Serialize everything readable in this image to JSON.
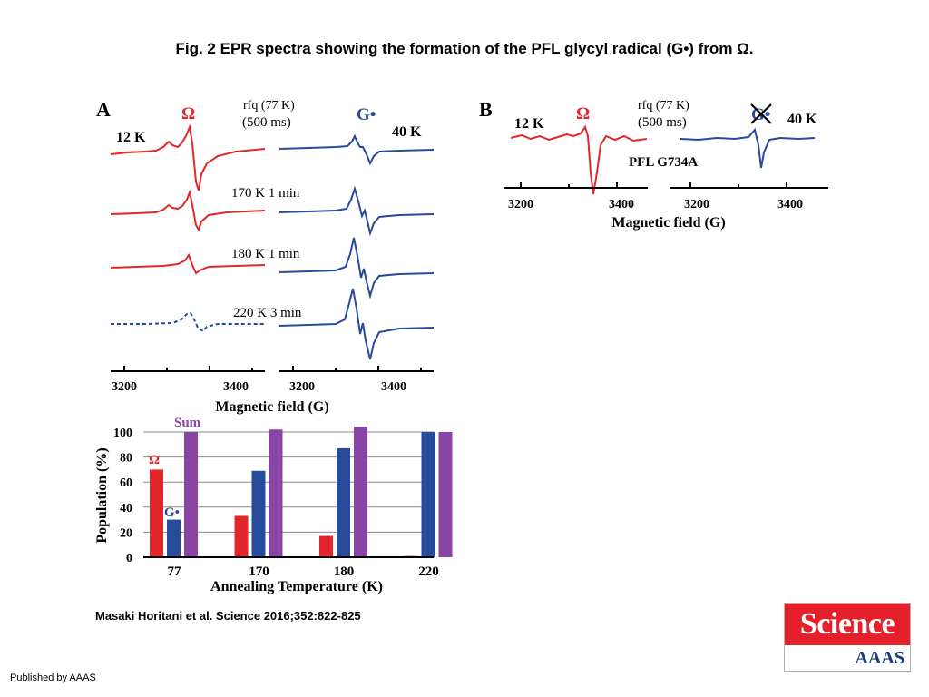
{
  "title": "Fig. 2 EPR spectra showing the formation of the PFL glycyl radical (G•) from Ω.",
  "citation": "Masaki Horitani et al. Science 2016;352:822-825",
  "publisher": "Published by AAAS",
  "logo": {
    "top": "Science",
    "bottom": "AAAS"
  },
  "colors": {
    "omega": "#e3262b",
    "glycyl": "#284a9a",
    "sum": "#8845a6",
    "axis": "#000000"
  },
  "panelA": {
    "letter": "A",
    "omega_symbol": "Ω",
    "g_symbol": "G•",
    "rfq_line1": "rfq (77 K)",
    "rfq_line2": "(500 ms)",
    "temp_left": "12 K",
    "temp_right": "40 K",
    "conditions": [
      "170 K 1 min",
      "180 K 1 min",
      "220 K 3 min"
    ],
    "ticks_left": [
      "3200",
      "3400"
    ],
    "ticks_right": [
      "3200",
      "3400"
    ],
    "xlabel": "Magnetic field (G)"
  },
  "panelB": {
    "letter": "B",
    "temp_left": "12 K",
    "omega_symbol": "Ω",
    "rfq_line1": "rfq (77 K)",
    "rfq_line2": "(500 ms)",
    "g_symbol": "G•",
    "temp_right": "40 K",
    "mutant": "PFL G734A",
    "ticks_left": [
      "3200",
      "3400"
    ],
    "ticks_right": [
      "3200",
      "3400"
    ],
    "xlabel": "Magnetic field (G)"
  },
  "chart_data": {
    "type": "bar",
    "categories": [
      "77",
      "170",
      "180",
      "220"
    ],
    "series": [
      {
        "name": "Ω",
        "values": [
          70,
          33,
          17,
          1
        ]
      },
      {
        "name": "G•",
        "values": [
          30,
          69,
          87,
          100
        ]
      },
      {
        "name": "Sum",
        "values": [
          100,
          102,
          104,
          100
        ]
      }
    ],
    "xlabel": "Annealing Temperature (K)",
    "ylabel": "Population (%)",
    "ylim": [
      0,
      100
    ],
    "yticks": [
      "0",
      "20",
      "40",
      "60",
      "80",
      "100"
    ]
  }
}
